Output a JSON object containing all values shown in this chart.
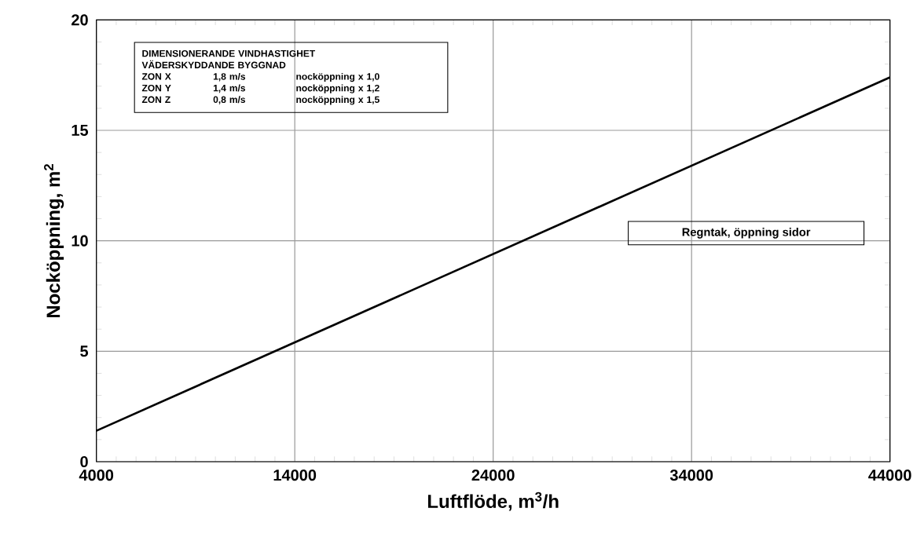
{
  "chart_data": {
    "type": "line",
    "xlabel": "Luftflöde, m$^{3}$/h",
    "ylabel": "Nocköppning, m$^{2}$",
    "x": [
      4000,
      44000
    ],
    "series": [
      {
        "color": "#000000",
        "values": [
          1.4,
          17.4
        ]
      }
    ],
    "xlim": [
      4000,
      44000
    ],
    "xticks": [
      4000,
      14000,
      24000,
      34000,
      44000
    ],
    "ylim": [
      0,
      20
    ],
    "yticks": [
      0,
      5,
      10,
      15,
      20
    ],
    "grid": true,
    "marker": "none",
    "line_style": "solid",
    "annotations": [
      "DIMENSIONERANDE VINDHASTIGHET",
      "VÄDERSKYDDANDE BYGGNAD",
      "ZON X",
      "1,8 m/s",
      "nocköppning x 1,0",
      "ZON Y",
      "1,4 m/s",
      "nocköppning x 1,2",
      "ZON Z",
      "0,8 m/s",
      "nocköppning x 1,5",
      "Regntak, öppning sidor"
    ]
  }
}
